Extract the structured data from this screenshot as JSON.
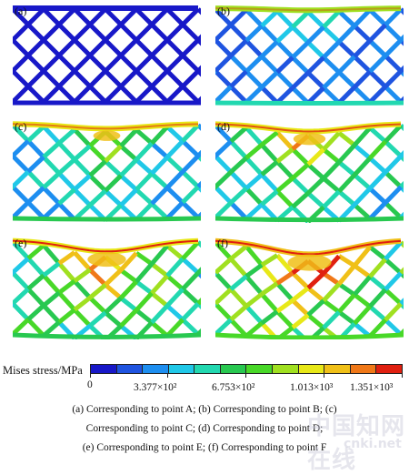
{
  "panels": [
    {
      "id": "a",
      "label": "(a)",
      "deformation": 0.0,
      "stress": 0.0
    },
    {
      "id": "b",
      "label": "(b)",
      "deformation": 0.15,
      "stress": 0.25
    },
    {
      "id": "c",
      "label": "(c)",
      "deformation": 0.35,
      "stress": 0.45
    },
    {
      "id": "d",
      "label": "(d)",
      "deformation": 0.55,
      "stress": 0.55
    },
    {
      "id": "e",
      "label": "(e)",
      "deformation": 0.8,
      "stress": 0.65
    },
    {
      "id": "f",
      "label": "(f)",
      "deformation": 1.0,
      "stress": 0.75
    }
  ],
  "legend": {
    "title": "Mises stress/MPa",
    "colors": [
      "#1818c8",
      "#1f54e0",
      "#1d8ef0",
      "#20c8e8",
      "#22d8b0",
      "#28c850",
      "#48d828",
      "#a0e020",
      "#e8e818",
      "#f0c018",
      "#f07818",
      "#e02010"
    ],
    "tick_labels": [
      "0",
      "3.377×10²",
      "6.753×10²",
      "1.013×10³",
      "1.351×10³"
    ]
  },
  "captions": [
    "(a) Corresponding to point A; (b) Corresponding to point B; (c)",
    "Corresponding to point C; (d) Corresponding to point D;",
    "(e) Corresponding to point E; (f) Corresponding to point F"
  ],
  "watermark": "中国知网在线",
  "watermark_sub": "cnki.net"
}
